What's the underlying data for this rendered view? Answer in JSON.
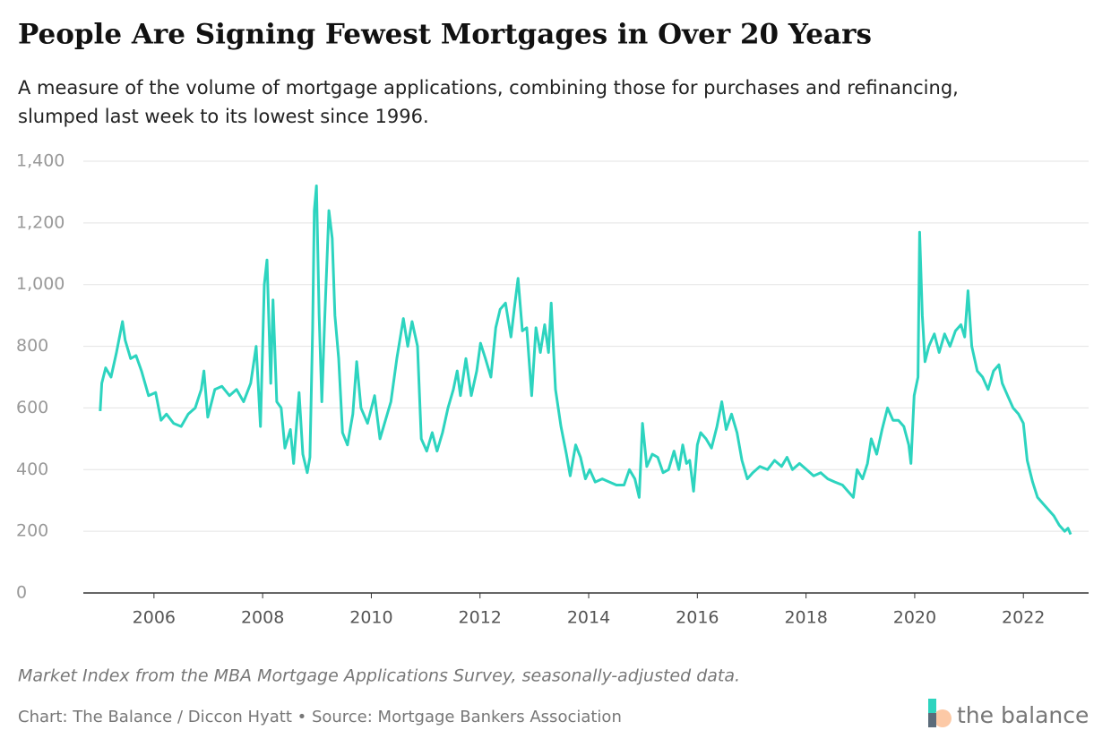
{
  "chart_data": {
    "type": "line",
    "title": "People Are Signing Fewest Mortgages in Over 20 Years",
    "subtitle": [
      "A measure of the volume of mortgage applications, combining those for purchases and refinancing,",
      "slumped last week to its lowest since 1996."
    ],
    "note": "Market Index from the MBA Mortgage Applications Survey, seasonally-adjusted data.",
    "source": "Chart: The Balance / Diccon Hyatt • Source: Mortgage Bankers Association",
    "logo": "the balance",
    "xlim": [
      2004.7,
      2023.2
    ],
    "xticks": [
      2006,
      2008,
      2010,
      2012,
      2014,
      2016,
      2018,
      2020,
      2022
    ],
    "ylim": [
      0,
      1400
    ],
    "yticks": [
      0,
      200,
      400,
      600,
      800,
      {
        "value": 1000,
        "label": "1,000"
      },
      {
        "value": 1200,
        "label": "1,200"
      },
      {
        "value": 1400,
        "label": "1,400"
      }
    ],
    "grid": true,
    "x": [
      2005.01,
      2005.04,
      2005.11,
      2005.21,
      2005.31,
      2005.42,
      2005.47,
      2005.57,
      2005.67,
      2005.77,
      2005.9,
      2006.03,
      2006.13,
      2006.23,
      2006.36,
      2006.5,
      2006.63,
      2006.76,
      2006.87,
      2006.92,
      2006.99,
      2007.12,
      2007.25,
      2007.39,
      2007.52,
      2007.65,
      2007.78,
      2007.88,
      2007.96,
      2008.03,
      2008.08,
      2008.15,
      2008.19,
      2008.26,
      2008.34,
      2008.41,
      2008.51,
      2008.57,
      2008.67,
      2008.74,
      2008.82,
      2008.87,
      2008.92,
      2008.95,
      2008.99,
      2009.04,
      2009.09,
      2009.14,
      2009.22,
      2009.28,
      2009.33,
      2009.4,
      2009.47,
      2009.56,
      2009.66,
      2009.73,
      2009.81,
      2009.93,
      2010.06,
      2010.16,
      2010.26,
      2010.36,
      2010.47,
      2010.59,
      2010.67,
      2010.75,
      2010.85,
      2010.92,
      2011.02,
      2011.12,
      2011.21,
      2011.31,
      2011.41,
      2011.51,
      2011.58,
      2011.64,
      2011.74,
      2011.84,
      2011.94,
      2012.01,
      2012.1,
      2012.2,
      2012.29,
      2012.37,
      2012.47,
      2012.57,
      2012.63,
      2012.7,
      2012.78,
      2012.86,
      2012.95,
      2013.03,
      2013.11,
      2013.19,
      2013.26,
      2013.31,
      2013.39,
      2013.49,
      2013.59,
      2013.66,
      2013.76,
      2013.85,
      2013.94,
      2014.02,
      2014.12,
      2014.25,
      2014.38,
      2014.51,
      2014.65,
      2014.75,
      2014.85,
      2014.93,
      2014.99,
      2015.07,
      2015.17,
      2015.27,
      2015.37,
      2015.47,
      2015.57,
      2015.66,
      2015.73,
      2015.8,
      2015.86,
      2015.93,
      2016.0,
      2016.06,
      2016.16,
      2016.26,
      2016.36,
      2016.45,
      2016.53,
      2016.63,
      2016.73,
      2016.82,
      2016.92,
      2017.02,
      2017.15,
      2017.29,
      2017.42,
      2017.55,
      2017.65,
      2017.75,
      2017.88,
      2018.01,
      2018.14,
      2018.27,
      2018.4,
      2018.53,
      2018.67,
      2018.77,
      2018.87,
      2018.94,
      2019.04,
      2019.13,
      2019.2,
      2019.3,
      2019.4,
      2019.5,
      2019.6,
      2019.7,
      2019.8,
      2019.89,
      2019.93,
      2019.99,
      2020.06,
      2020.09,
      2020.14,
      2020.19,
      2020.26,
      2020.36,
      2020.45,
      2020.55,
      2020.65,
      2020.75,
      2020.85,
      2020.92,
      2020.98,
      2021.05,
      2021.15,
      2021.25,
      2021.35,
      2021.45,
      2021.55,
      2021.61,
      2021.71,
      2021.81,
      2021.91,
      2022.0,
      2022.07,
      2022.17,
      2022.26,
      2022.36,
      2022.46,
      2022.56,
      2022.66,
      2022.76,
      2022.82,
      2022.87
    ],
    "series": [
      {
        "color": "#2dd4bf",
        "values": [
          590,
          680,
          730,
          700,
          780,
          880,
          820,
          760,
          770,
          720,
          640,
          650,
          560,
          580,
          550,
          540,
          580,
          600,
          660,
          720,
          570,
          660,
          670,
          640,
          660,
          620,
          680,
          800,
          540,
          1000,
          1080,
          680,
          950,
          620,
          600,
          470,
          530,
          420,
          650,
          450,
          390,
          440,
          850,
          1240,
          1320,
          900,
          620,
          880,
          1240,
          1150,
          900,
          760,
          520,
          480,
          580,
          750,
          600,
          550,
          640,
          500,
          560,
          620,
          760,
          890,
          800,
          880,
          800,
          500,
          460,
          520,
          460,
          520,
          600,
          660,
          720,
          640,
          760,
          640,
          720,
          810,
          760,
          700,
          860,
          920,
          940,
          830,
          920,
          1020,
          850,
          860,
          640,
          860,
          780,
          870,
          780,
          940,
          660,
          540,
          450,
          380,
          480,
          440,
          370,
          400,
          360,
          370,
          360,
          350,
          350,
          400,
          370,
          310,
          550,
          410,
          450,
          440,
          390,
          400,
          460,
          400,
          480,
          420,
          430,
          330,
          480,
          520,
          500,
          470,
          540,
          620,
          530,
          580,
          520,
          430,
          370,
          390,
          410,
          400,
          430,
          410,
          440,
          400,
          420,
          400,
          380,
          390,
          370,
          360,
          350,
          330,
          310,
          400,
          370,
          420,
          500,
          450,
          530,
          600,
          560,
          560,
          540,
          480,
          420,
          640,
          700,
          1170,
          900,
          750,
          800,
          840,
          780,
          840,
          800,
          850,
          870,
          830,
          980,
          800,
          720,
          700,
          660,
          720,
          740,
          680,
          640,
          600,
          580,
          550,
          430,
          360,
          310,
          290,
          270,
          250,
          220,
          200,
          210,
          190
        ]
      }
    ]
  }
}
